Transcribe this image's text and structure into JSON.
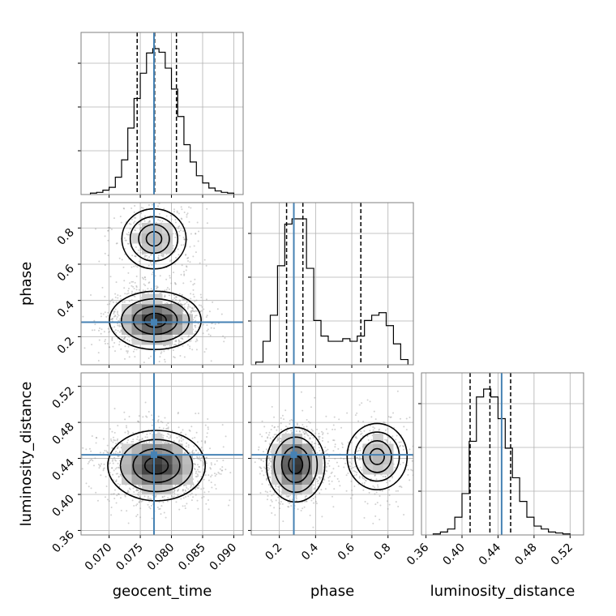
{
  "chart_data": {
    "type": "corner",
    "parameters": [
      "geocent_time",
      "phase",
      "luminosity_distance"
    ],
    "grid": true,
    "truth_color": "#4682b4",
    "ranges": {
      "geocent_time": [
        0.0655,
        0.0915
      ],
      "phase": [
        0.045,
        0.94
      ],
      "luminosity_distance": [
        0.355,
        0.535
      ]
    },
    "ticks": {
      "geocent_time": [
        "0.070",
        "0.075",
        "0.080",
        "0.085",
        "0.090"
      ],
      "phase": [
        "0.2",
        "0.4",
        "0.6",
        "0.8"
      ],
      "luminosity_distance": [
        "0.36",
        "0.40",
        "0.44",
        "0.48",
        "0.52"
      ]
    },
    "truths": {
      "geocent_time": 0.0772,
      "phase": 0.28,
      "luminosity_distance": 0.444
    },
    "quantiles": {
      "geocent_time": [
        0.0745,
        0.0773,
        0.0808
      ],
      "phase": [
        0.24,
        0.33,
        0.65
      ],
      "luminosity_distance": [
        0.409,
        0.431,
        0.454
      ]
    },
    "histograms": {
      "geocent_time": {
        "edges": [
          0.067,
          0.068,
          0.069,
          0.07,
          0.071,
          0.072,
          0.073,
          0.074,
          0.075,
          0.076,
          0.077,
          0.078,
          0.079,
          0.08,
          0.081,
          0.082,
          0.083,
          0.084,
          0.085,
          0.086,
          0.087,
          0.088,
          0.089,
          0.09
        ],
        "counts": [
          2,
          3,
          6,
          10,
          24,
          48,
          92,
          133,
          168,
          196,
          202,
          197,
          175,
          146,
          108,
          69,
          45,
          26,
          16,
          9,
          5,
          3,
          2
        ]
      },
      "phase": {
        "edges": [
          0.07,
          0.11,
          0.15,
          0.19,
          0.23,
          0.27,
          0.31,
          0.35,
          0.39,
          0.43,
          0.47,
          0.51,
          0.55,
          0.59,
          0.63,
          0.67,
          0.71,
          0.75,
          0.79,
          0.83,
          0.87,
          0.91
        ],
        "counts": [
          5,
          45,
          95,
          190,
          270,
          280,
          280,
          185,
          85,
          55,
          45,
          45,
          50,
          45,
          55,
          85,
          95,
          100,
          75,
          40,
          10
        ]
      },
      "luminosity_distance": {
        "edges": [
          0.368,
          0.376,
          0.384,
          0.392,
          0.4,
          0.408,
          0.416,
          0.424,
          0.432,
          0.44,
          0.448,
          0.456,
          0.464,
          0.472,
          0.48,
          0.488,
          0.496,
          0.504,
          0.512,
          0.52
        ],
        "counts": [
          1,
          3,
          6,
          18,
          42,
          95,
          140,
          148,
          140,
          118,
          88,
          58,
          34,
          18,
          9,
          6,
          3,
          2,
          1
        ]
      }
    },
    "joint_modes": [
      {
        "x": "geocent_time",
        "y": "phase",
        "peaks": [
          {
            "x": 0.0774,
            "y": 0.29,
            "sx": 0.0032,
            "sy": 0.07,
            "w": 1.0
          },
          {
            "x": 0.0772,
            "y": 0.74,
            "sx": 0.0028,
            "sy": 0.09,
            "w": 0.35
          }
        ]
      },
      {
        "x": "geocent_time",
        "y": "luminosity_distance",
        "peaks": [
          {
            "x": 0.0776,
            "y": 0.432,
            "sx": 0.0034,
            "sy": 0.017,
            "w": 1.0
          }
        ]
      },
      {
        "x": "phase",
        "y": "luminosity_distance",
        "peaks": [
          {
            "x": 0.29,
            "y": 0.433,
            "sx": 0.07,
            "sy": 0.018,
            "w": 1.0
          },
          {
            "x": 0.74,
            "y": 0.442,
            "sx": 0.09,
            "sy": 0.02,
            "w": 0.35
          }
        ]
      }
    ]
  }
}
